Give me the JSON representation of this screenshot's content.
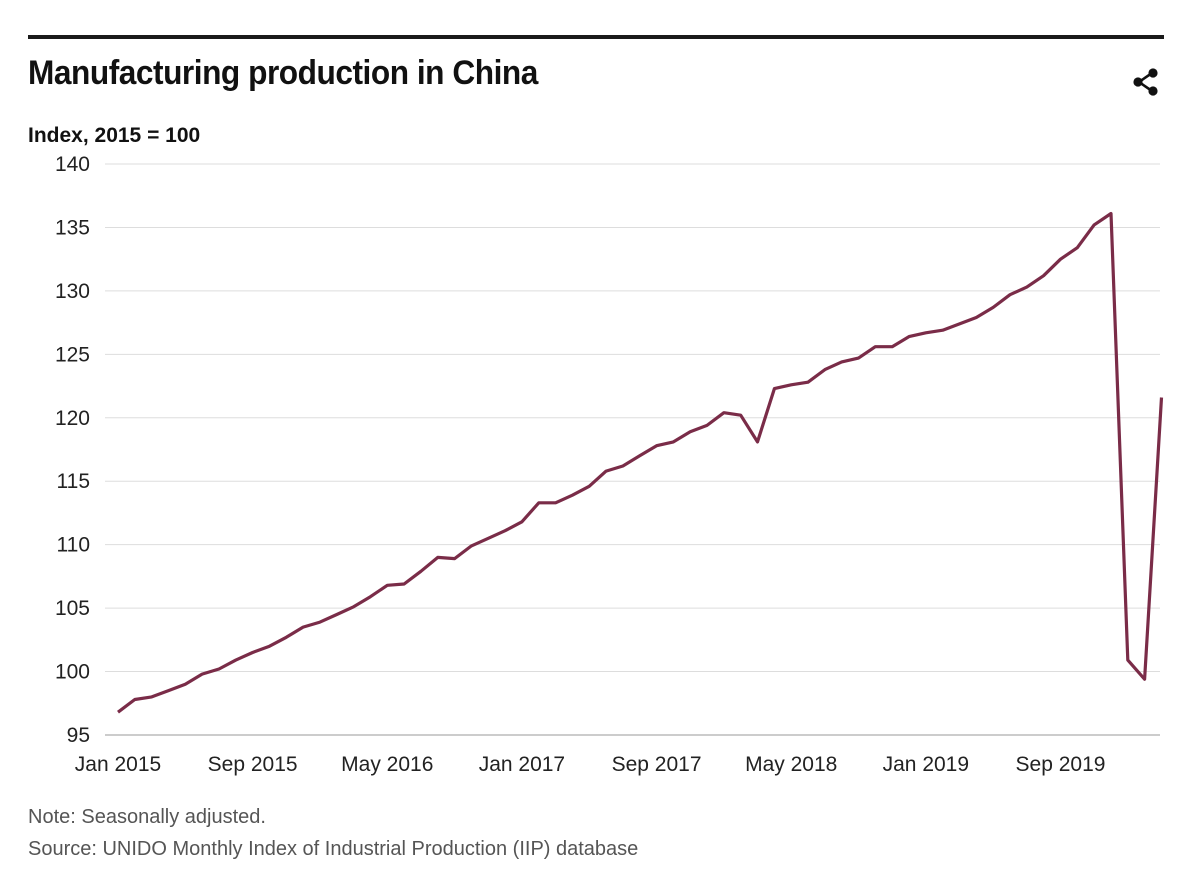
{
  "header": {
    "title": "Manufacturing production in China",
    "share_icon": "share-icon"
  },
  "colors": {
    "line": "#7a2c48",
    "grid": "#dddddd",
    "rule": "#1a1a1a"
  },
  "footer": {
    "note": "Note: Seasonally adjusted.",
    "source": "Source: UNIDO Monthly Index of Industrial Production (IIP) database"
  },
  "chart_data": {
    "type": "line",
    "title": "Manufacturing production in China",
    "ylabel": "Index, 2015 = 100",
    "xlabel": "",
    "ylim": [
      95,
      140
    ],
    "yticks": [
      95,
      100,
      105,
      110,
      115,
      120,
      125,
      130,
      135,
      140
    ],
    "xtick_labels": [
      "Jan 2015",
      "Sep 2015",
      "May 2016",
      "Jan 2017",
      "Sep 2017",
      "May 2018",
      "Jan 2019",
      "Sep 2019"
    ],
    "grid": true,
    "legend": "none",
    "series": [
      {
        "x": [
          "Jan 2015",
          "Feb 2015",
          "Mar 2015",
          "Apr 2015",
          "May 2015",
          "Jun 2015",
          "Jul 2015",
          "Aug 2015",
          "Sep 2015",
          "Oct 2015",
          "Nov 2015",
          "Dec 2015",
          "Jan 2016",
          "Feb 2016",
          "Mar 2016",
          "Apr 2016",
          "May 2016",
          "Jun 2016",
          "Jul 2016",
          "Aug 2016",
          "Sep 2016",
          "Oct 2016",
          "Nov 2016",
          "Dec 2016",
          "Jan 2017",
          "Feb 2017",
          "Mar 2017",
          "Apr 2017",
          "May 2017",
          "Jun 2017",
          "Jul 2017",
          "Aug 2017",
          "Sep 2017",
          "Oct 2017",
          "Nov 2017",
          "Dec 2017",
          "Jan 2018",
          "Feb 2018",
          "Mar 2018",
          "Apr 2018",
          "May 2018",
          "Jun 2018",
          "Jul 2018",
          "Aug 2018",
          "Sep 2018",
          "Oct 2018",
          "Nov 2018",
          "Dec 2018",
          "Jan 2019",
          "Feb 2019",
          "Mar 2019",
          "Apr 2019",
          "May 2019",
          "Jun 2019",
          "Jul 2019",
          "Aug 2019",
          "Sep 2019",
          "Oct 2019",
          "Nov 2019",
          "Dec 2019",
          "Jan 2020",
          "Feb 2020",
          "Mar 2020"
        ],
        "values": [
          96.8,
          97.8,
          98.0,
          98.5,
          99.0,
          99.8,
          100.2,
          100.9,
          101.5,
          102.0,
          102.7,
          103.5,
          103.9,
          104.5,
          105.1,
          105.9,
          106.8,
          106.9,
          107.9,
          109.0,
          108.9,
          109.9,
          110.5,
          111.1,
          111.8,
          113.3,
          113.3,
          113.9,
          114.6,
          115.8,
          116.2,
          117.0,
          117.8,
          118.1,
          118.9,
          119.4,
          120.4,
          120.2,
          118.1,
          122.3,
          122.6,
          122.8,
          123.8,
          124.4,
          124.7,
          125.6,
          125.6,
          126.4,
          126.7,
          126.9,
          127.4,
          127.9,
          128.7,
          129.7,
          130.3,
          131.2,
          132.5,
          133.4,
          135.2,
          136.1,
          100.9,
          99.4,
          121.6
        ]
      }
    ]
  }
}
